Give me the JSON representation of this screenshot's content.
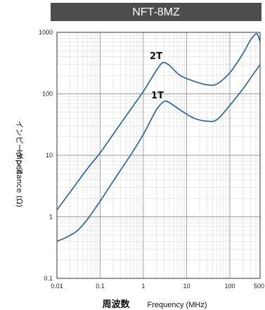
{
  "chart_data": {
    "type": "line",
    "title": "NFT-8MZ",
    "xlabel_jp": "周波数",
    "xlabel": "Frequency (MHz)",
    "ylabel_jp": "インピーダンス",
    "ylabel": "Impedance (Ω)",
    "xscale": "log",
    "yscale": "log",
    "xlim": [
      0.01,
      500
    ],
    "ylim": [
      0.1,
      1000
    ],
    "grid": true,
    "x_ticks": [
      "0.01",
      "0.1",
      "1",
      "10",
      "100",
      "500"
    ],
    "y_ticks": [
      "1000",
      "100",
      "10",
      "1",
      "0.1"
    ],
    "series": [
      {
        "name": "2T",
        "x": [
          0.01,
          0.02,
          0.05,
          0.1,
          0.2,
          0.5,
          1,
          2,
          2.8,
          4,
          7,
          15,
          30,
          50,
          100,
          200,
          300,
          420,
          500
        ],
        "y": [
          1.3,
          2.5,
          6,
          11,
          22,
          55,
          110,
          240,
          320,
          290,
          200,
          160,
          140,
          145,
          220,
          450,
          750,
          950,
          700
        ]
      },
      {
        "name": "1T",
        "x": [
          0.01,
          0.015,
          0.02,
          0.03,
          0.05,
          0.1,
          0.2,
          0.5,
          1,
          2,
          3,
          4,
          7,
          15,
          30,
          50,
          100,
          200,
          300,
          500
        ],
        "y": [
          0.4,
          0.45,
          0.5,
          0.6,
          0.9,
          1.8,
          3.8,
          10,
          22,
          55,
          75,
          72,
          55,
          40,
          36,
          38,
          65,
          120,
          180,
          300
        ]
      }
    ],
    "curve_labels": [
      "2T",
      "1T"
    ]
  },
  "colors": {
    "series": "#1a5fa8",
    "title_bar": "#4d4d4d",
    "grid_major": "#9a9a9a",
    "grid_minor": "#d4d4d4"
  }
}
